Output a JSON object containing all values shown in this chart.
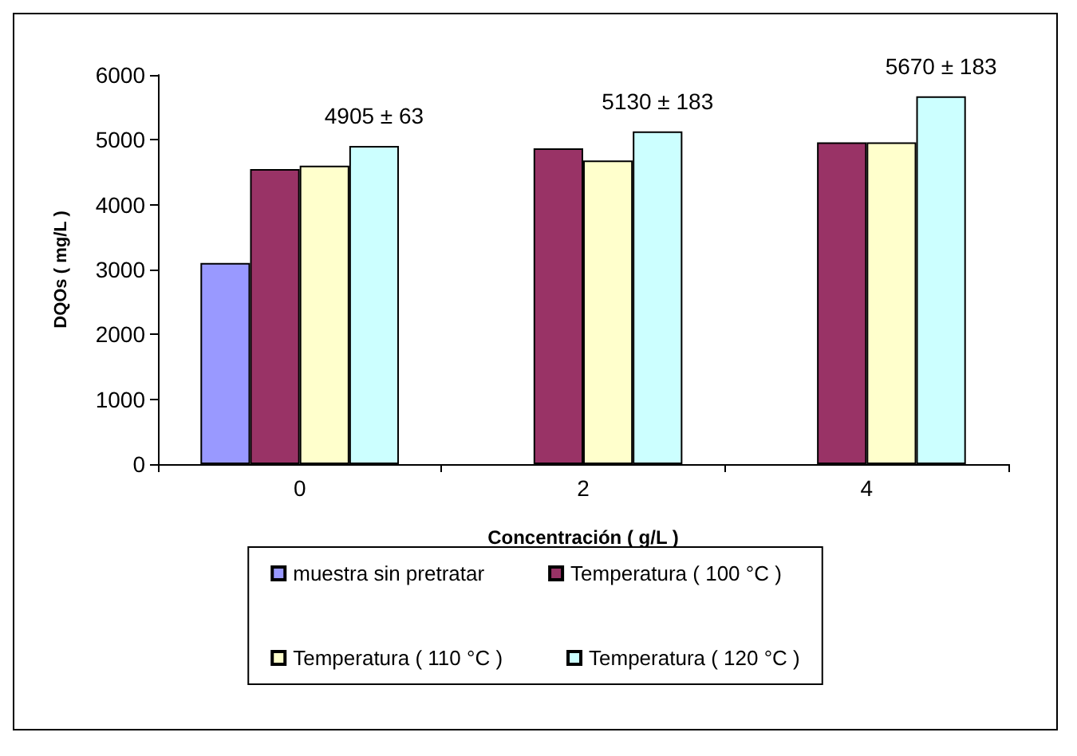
{
  "chart_data": {
    "type": "bar",
    "xlabel": "Concentración ( g/L )",
    "ylabel": "DQOs ( mg/L )",
    "categories": [
      "0",
      "2",
      "4"
    ],
    "ylim": [
      0,
      6000
    ],
    "yticks": [
      0,
      1000,
      2000,
      3000,
      4000,
      5000,
      6000
    ],
    "grid": false,
    "legend": "bottom",
    "series": [
      {
        "name": "muestra sin pretratar",
        "color": "#9999ff",
        "values": [
          3100,
          null,
          null
        ]
      },
      {
        "name": "Temperatura ( 100 °C )",
        "color": "#993366",
        "values": [
          4550,
          4870,
          4960
        ]
      },
      {
        "name": "Temperatura ( 110 °C )",
        "color": "#ffffcc",
        "values": [
          4600,
          4680,
          4960
        ]
      },
      {
        "name": "Temperatura ( 120 °C )",
        "color": "#ccffff",
        "values": [
          4905,
          5130,
          5670
        ],
        "value_labels": [
          "4905 ± 63",
          "5130 ± 183",
          "5670 ± 183"
        ]
      }
    ]
  }
}
